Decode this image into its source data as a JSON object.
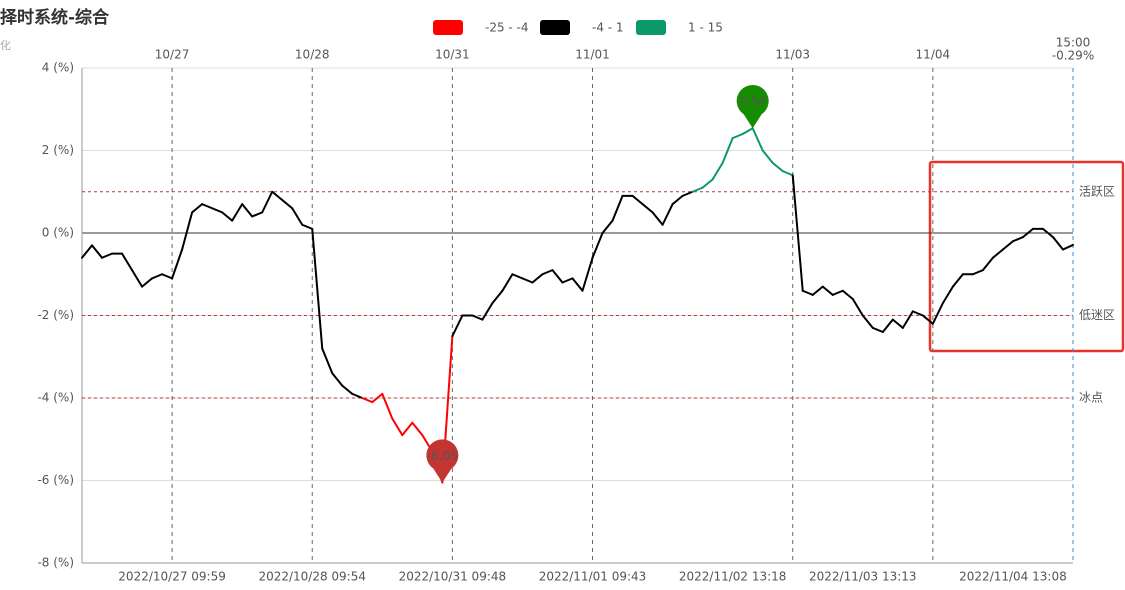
{
  "chart_data": {
    "type": "line",
    "title": "择时系统-综合",
    "y_axis_label": "化",
    "categories": [
      null,
      null,
      null,
      null,
      null,
      null,
      null,
      null,
      null,
      "2022/10/27 09:59",
      null,
      null,
      null,
      null,
      null,
      null,
      null,
      null,
      null,
      null,
      null,
      null,
      null,
      "2022/10/28 09:54",
      null,
      null,
      null,
      null,
      null,
      null,
      null,
      null,
      null,
      null,
      null,
      null,
      null,
      "2022/10/31 09:48",
      null,
      null,
      null,
      null,
      null,
      null,
      null,
      null,
      null,
      null,
      null,
      null,
      null,
      "2022/11/01 09:43",
      null,
      null,
      null,
      null,
      null,
      null,
      null,
      null,
      null,
      null,
      null,
      null,
      null,
      "2022/11/02 13:18",
      null,
      null,
      null,
      null,
      null,
      null,
      null,
      null,
      null,
      null,
      null,
      null,
      "2022/11/03 13:13",
      null,
      null,
      null,
      null,
      null,
      null,
      null,
      null,
      null,
      null,
      null,
      null,
      null,
      null,
      "2022/11/04 13:08",
      null,
      null,
      null,
      null,
      null,
      null
    ],
    "top_categories": [
      null,
      null,
      null,
      null,
      null,
      null,
      null,
      null,
      null,
      "10/27",
      null,
      null,
      null,
      null,
      null,
      null,
      null,
      null,
      null,
      null,
      null,
      null,
      null,
      "10/28",
      null,
      null,
      null,
      null,
      null,
      null,
      null,
      null,
      null,
      null,
      null,
      null,
      null,
      "10/31",
      null,
      null,
      null,
      null,
      null,
      null,
      null,
      null,
      null,
      null,
      null,
      null,
      null,
      "11/01",
      null,
      null,
      null,
      null,
      null,
      null,
      null,
      null,
      null,
      null,
      null,
      null,
      null,
      null,
      null,
      null,
      null,
      null,
      null,
      "11/03",
      null,
      null,
      null,
      null,
      null,
      null,
      null,
      null,
      null,
      null,
      null,
      null,
      null,
      "11/04",
      null,
      null,
      null,
      null,
      null,
      null,
      null,
      null,
      null,
      null,
      null,
      null,
      null,
      "15:00"
    ],
    "end_label": "-0.29%",
    "end_color": "#3a8ee6",
    "values": [
      -0.6,
      -0.3,
      -0.6,
      -0.5,
      -0.5,
      -0.9,
      -1.3,
      -1.1,
      -1.0,
      -1.1,
      -0.4,
      0.5,
      0.7,
      0.6,
      0.5,
      0.3,
      0.7,
      0.4,
      0.5,
      1.0,
      0.8,
      0.6,
      0.2,
      0.1,
      -2.8,
      -3.4,
      -3.7,
      -3.9,
      -4.0,
      -4.1,
      -3.9,
      -4.5,
      -4.9,
      -4.6,
      -4.9,
      -5.3,
      -6.05,
      -2.5,
      -2.0,
      -2.0,
      -2.1,
      -1.7,
      -1.4,
      -1.0,
      -1.1,
      -1.2,
      -1.0,
      -0.9,
      -1.2,
      -1.1,
      -1.4,
      -0.6,
      0.0,
      0.3,
      0.9,
      0.9,
      0.7,
      0.5,
      0.2,
      0.7,
      0.9,
      1.0,
      1.1,
      1.3,
      1.7,
      2.3,
      2.4,
      2.54,
      2.0,
      1.7,
      1.5,
      1.4,
      -1.4,
      -1.5,
      -1.3,
      -1.5,
      -1.4,
      -1.6,
      -2.0,
      -2.3,
      -2.4,
      -2.1,
      -2.3,
      -1.9,
      -2.0,
      -2.2,
      -1.7,
      -1.3,
      -1.0,
      -1.0,
      -0.9,
      -0.6,
      -0.4,
      -0.2,
      -0.1,
      0.1,
      0.1,
      -0.1,
      -0.4,
      -0.29
    ],
    "value_labels": [
      null,
      null,
      null,
      null,
      null,
      null,
      null,
      null,
      null,
      null,
      null,
      null,
      null,
      null,
      null,
      null,
      null,
      null,
      null,
      null,
      null,
      null,
      null,
      null,
      null,
      null,
      null,
      null,
      null,
      null,
      null,
      null,
      null,
      null,
      null,
      null,
      "-6.05",
      null,
      null,
      null,
      null,
      null,
      null,
      null,
      null,
      null,
      null,
      null,
      null,
      null,
      null,
      null,
      null,
      null,
      null,
      null,
      null,
      null,
      null,
      null,
      null,
      null,
      null,
      null,
      null,
      null,
      null,
      "2.54",
      null,
      null,
      null,
      null,
      null,
      null,
      null,
      null,
      null,
      null,
      null,
      null,
      null,
      null,
      null,
      null,
      null,
      null,
      null,
      null,
      null,
      null,
      null,
      null,
      null,
      null,
      null,
      null,
      null,
      null,
      null,
      null
    ],
    "pin_colors": {
      "max": "#168c00",
      "min": "#c23531"
    },
    "pieces": [
      {
        "label": "-25 - -4",
        "min": -25,
        "max": -4,
        "color": "#ff0000"
      },
      {
        "label": "-4 - 1",
        "min": -4,
        "max": 1,
        "color": "#000000"
      },
      {
        "label": "1 - 15",
        "min": 1,
        "max": 15,
        "color": "#0a9a6a"
      }
    ],
    "mark_lines": [
      {
        "value": 1,
        "label": "活跃区"
      },
      {
        "value": -2,
        "label": "低迷区"
      },
      {
        "value": -4,
        "label": "冰点"
      }
    ],
    "mark_line_color": "#c23531",
    "ylim": [
      -8,
      4
    ],
    "yticks": [
      {
        "value": -8,
        "label": "-8 (%)"
      },
      {
        "value": -6,
        "label": "-6 (%)"
      },
      {
        "value": -4,
        "label": "-4 (%)"
      },
      {
        "value": -2,
        "label": "-2 (%)"
      },
      {
        "value": 0,
        "label": "0 (%)"
      },
      {
        "value": 2,
        "label": "2 (%)"
      },
      {
        "value": 4,
        "label": "4 (%)"
      }
    ],
    "grid": true
  }
}
